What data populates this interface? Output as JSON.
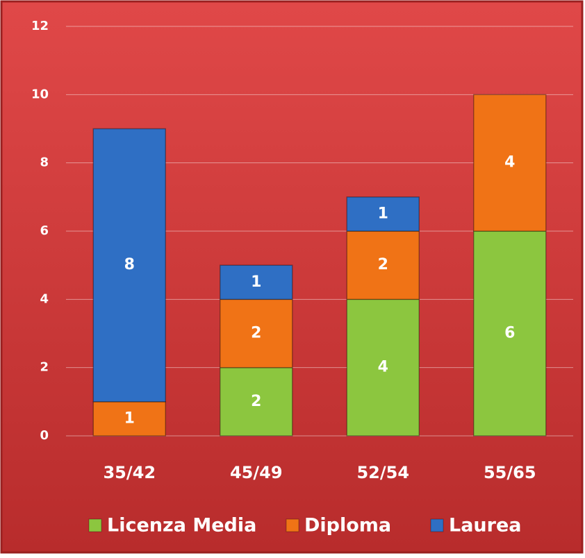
{
  "chart_data": {
    "type": "stacked_bar",
    "categories": [
      "35/42",
      "45/49",
      "52/54",
      "55/65"
    ],
    "series": [
      {
        "name": "Licenza Media",
        "color": "#8cc63f",
        "values": [
          null,
          2,
          4,
          6
        ]
      },
      {
        "name": "Diploma",
        "color": "#f07316",
        "values": [
          1,
          2,
          2,
          4
        ]
      },
      {
        "name": "Laurea",
        "color": "#2f6fc4",
        "values": [
          8,
          1,
          1,
          null
        ]
      }
    ],
    "ylim": [
      0,
      12
    ],
    "yticks": [
      0,
      2,
      4,
      6,
      8,
      10,
      12
    ],
    "grid": true,
    "legend": "bottom"
  }
}
